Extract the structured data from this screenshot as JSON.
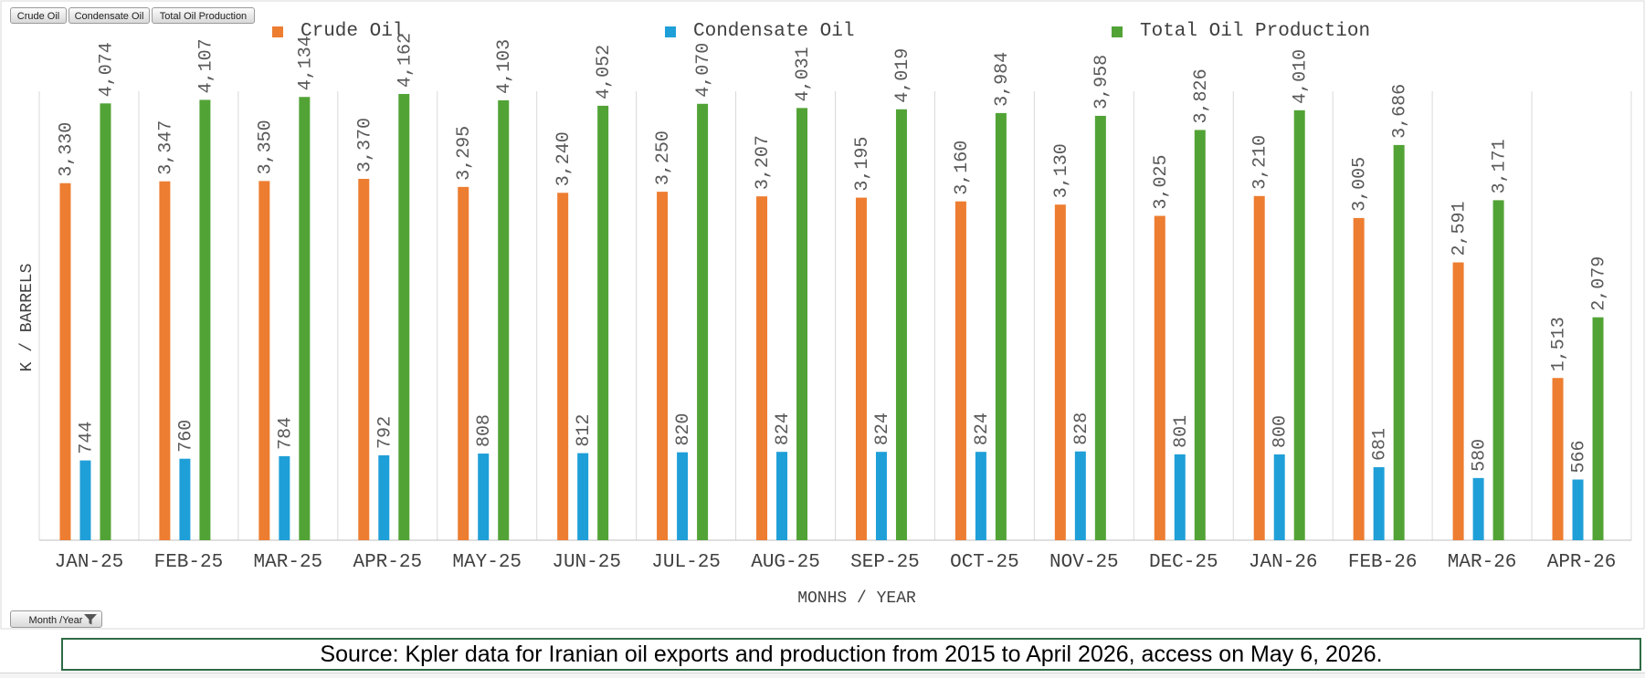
{
  "toolbar": {
    "fields": [
      "Crude Oil",
      "Condensate Oil",
      "Total Oil Production"
    ],
    "axis_field": "Month /Year"
  },
  "source_text": "Source: Kpler data for Iranian oil exports and production from 2015 to April 2026, access on May 6, 2026.",
  "chart_data": {
    "type": "bar",
    "title": "",
    "xlabel": "MONHS / YEAR",
    "ylabel": "K / BARRELS",
    "ylim": [
      0,
      4500
    ],
    "grid": "vertical",
    "legend_position": "top",
    "categories": [
      "JAN-25",
      "FEB-25",
      "MAR-25",
      "APR-25",
      "MAY-25",
      "JUN-25",
      "JUL-25",
      "AUG-25",
      "SEP-25",
      "OCT-25",
      "NOV-25",
      "DEC-25",
      "JAN-26",
      "FEB-26",
      "MAR-26",
      "APR-26"
    ],
    "series": [
      {
        "name": "Crude Oil",
        "color": "#ED7D31",
        "values": [
          3330,
          3347,
          3350,
          3370,
          3295,
          3240,
          3250,
          3207,
          3195,
          3160,
          3130,
          3025,
          3210,
          3005,
          2591,
          1513
        ]
      },
      {
        "name": "Condensate Oil",
        "color": "#1F9FD8",
        "values": [
          744,
          760,
          784,
          792,
          808,
          812,
          820,
          824,
          824,
          824,
          828,
          801,
          800,
          681,
          580,
          566
        ]
      },
      {
        "name": "Total Oil Production",
        "color": "#52A336",
        "values": [
          4074,
          4107,
          4134,
          4162,
          4103,
          4052,
          4070,
          4031,
          4019,
          3984,
          3958,
          3826,
          4010,
          3686,
          3171,
          2079
        ]
      }
    ]
  }
}
